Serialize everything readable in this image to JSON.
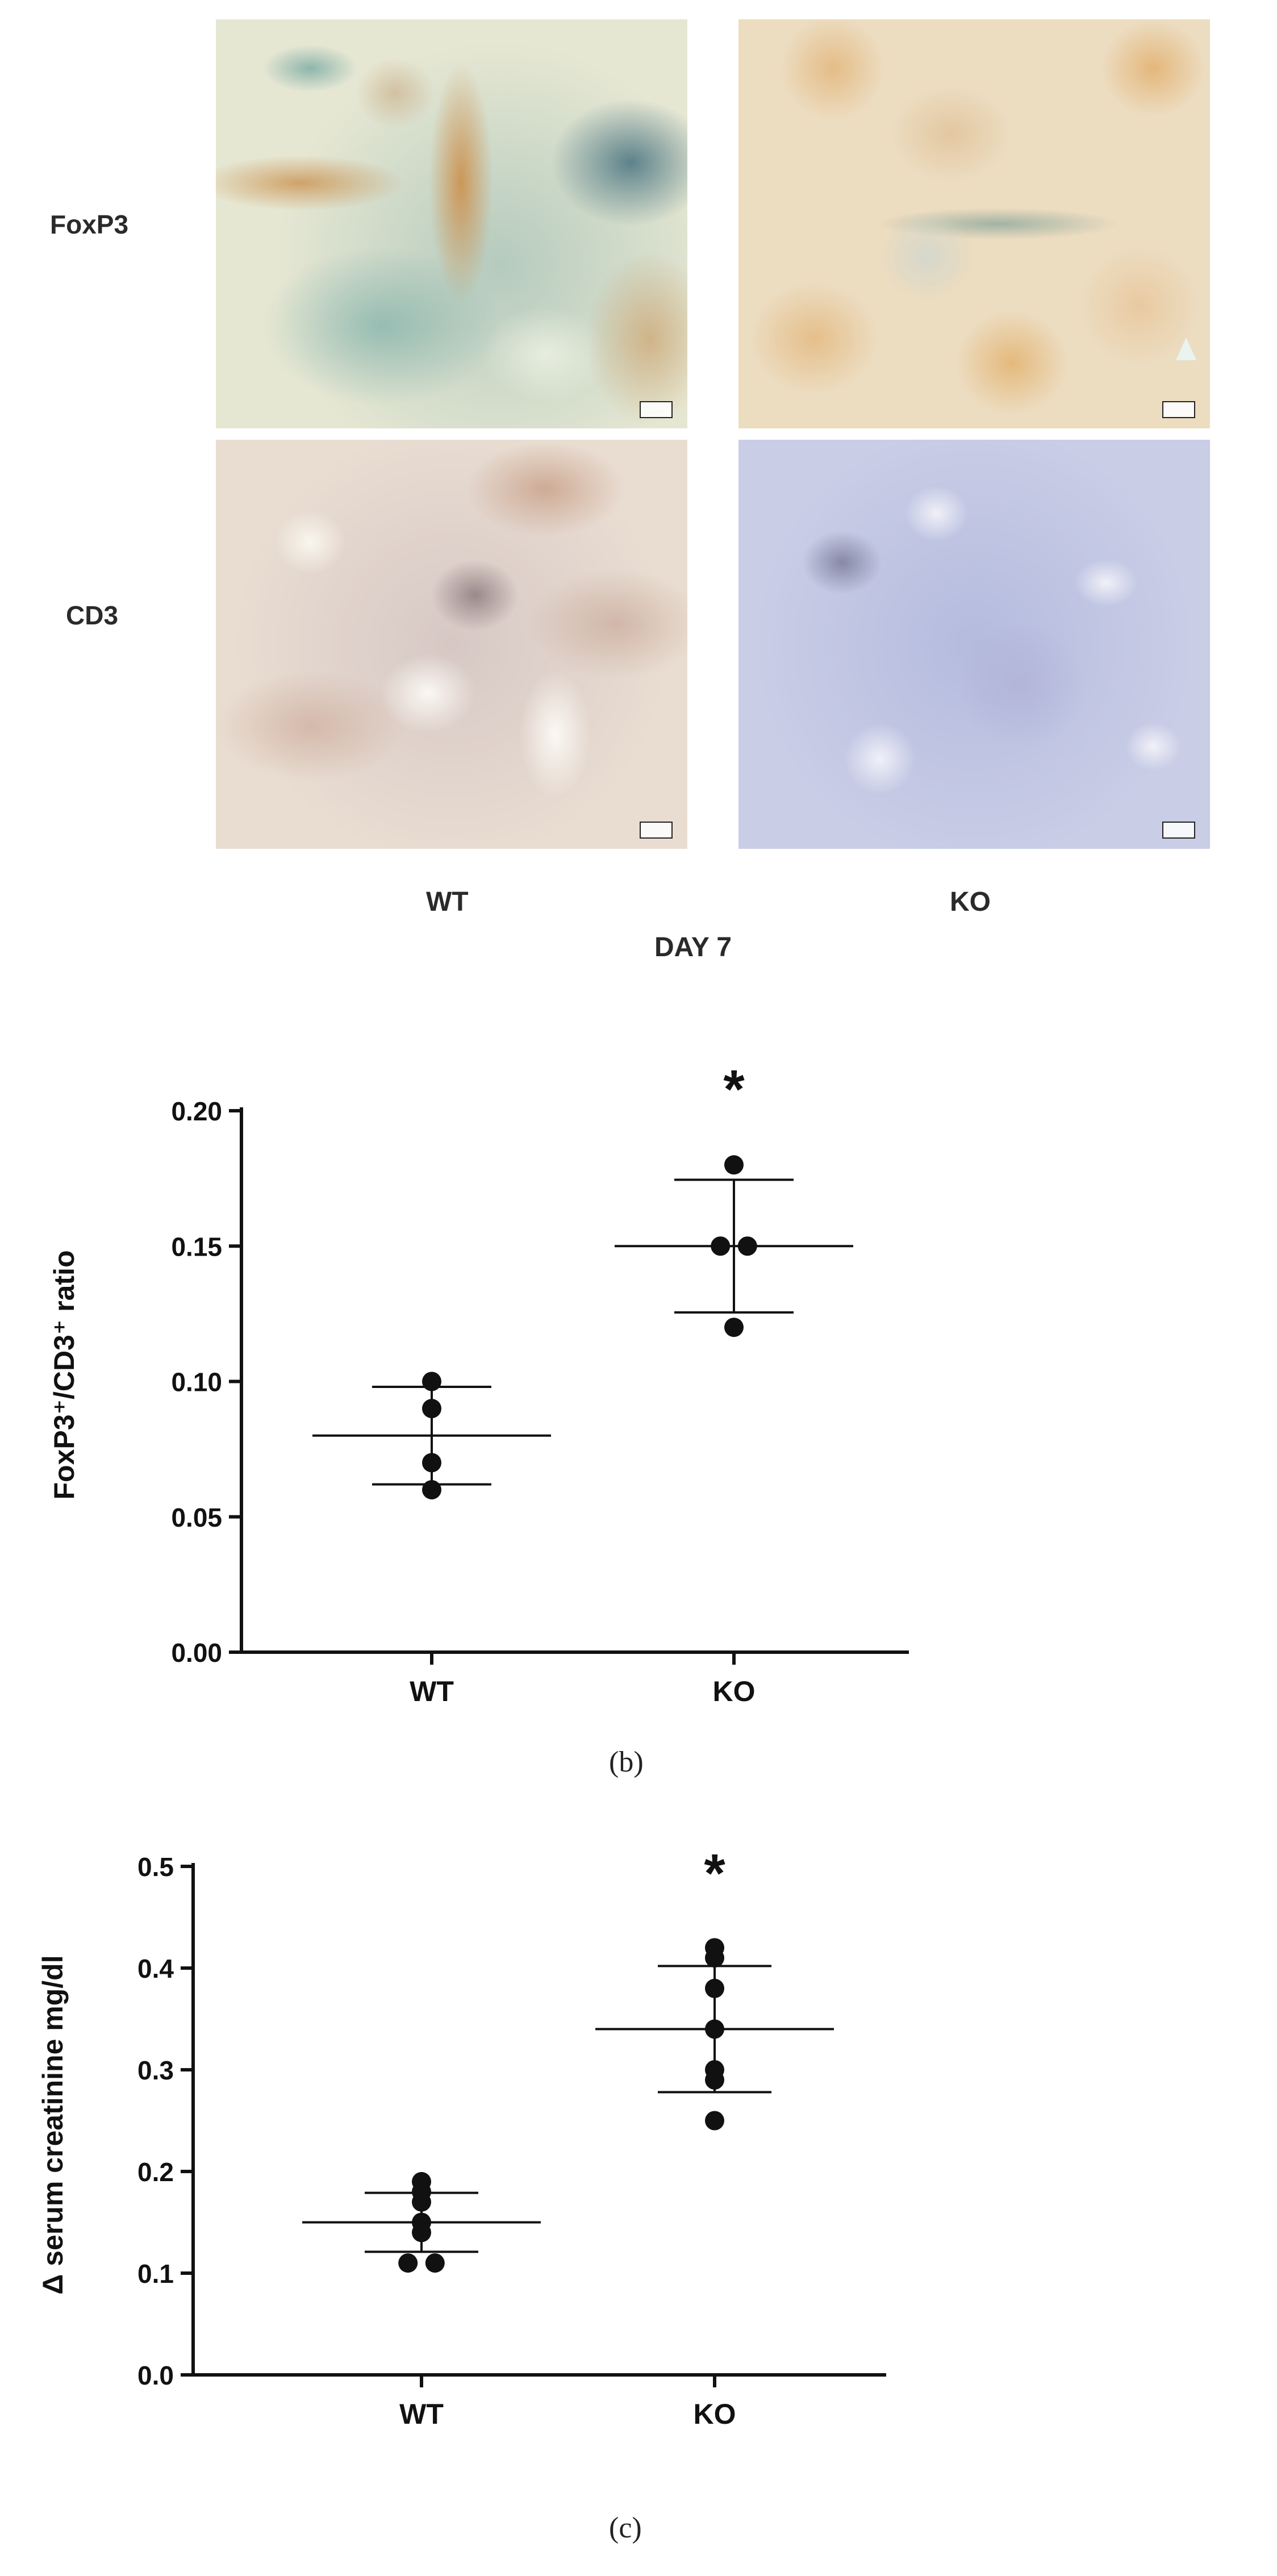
{
  "figure_a": {
    "row_labels": [
      "FoxP3",
      "CD3"
    ],
    "column_labels": [
      "WT",
      "KO"
    ],
    "timepoint_label": "DAY 7"
  },
  "panel_b": {
    "caption": "(b)"
  },
  "panel_c": {
    "caption": "(c)"
  },
  "chart_data": [
    {
      "type": "scatter",
      "title": "",
      "xlabel": "",
      "ylabel": "FoxP3⁺/CD3⁺ ratio",
      "categories": [
        "WT",
        "KO"
      ],
      "ylim": [
        0,
        0.2
      ],
      "yticks": [
        "0.00",
        "0.05",
        "0.10",
        "0.15",
        "0.20"
      ],
      "series": [
        {
          "values": [
            0.1,
            0.09,
            0.07,
            0.06
          ],
          "mean": 0.08,
          "sd": 0.018
        },
        {
          "values": [
            0.18,
            0.15,
            0.15,
            0.12
          ],
          "mean": 0.15,
          "sd": 0.0245
        }
      ],
      "annotation": "*",
      "grid": false
    },
    {
      "type": "scatter",
      "title": "",
      "xlabel": "",
      "ylabel": "Δ serum creatinine mg/dl",
      "categories": [
        "WT",
        "KO"
      ],
      "ylim": [
        0,
        0.5
      ],
      "yticks": [
        "0.0",
        "0.1",
        "0.2",
        "0.3",
        "0.4",
        "0.5"
      ],
      "series": [
        {
          "values": [
            0.19,
            0.18,
            0.17,
            0.15,
            0.14,
            0.11,
            0.11
          ],
          "mean": 0.15,
          "sd": 0.029
        },
        {
          "values": [
            0.42,
            0.41,
            0.38,
            0.34,
            0.3,
            0.29,
            0.25
          ],
          "mean": 0.34,
          "sd": 0.062
        }
      ],
      "annotation": "*",
      "grid": false
    }
  ]
}
